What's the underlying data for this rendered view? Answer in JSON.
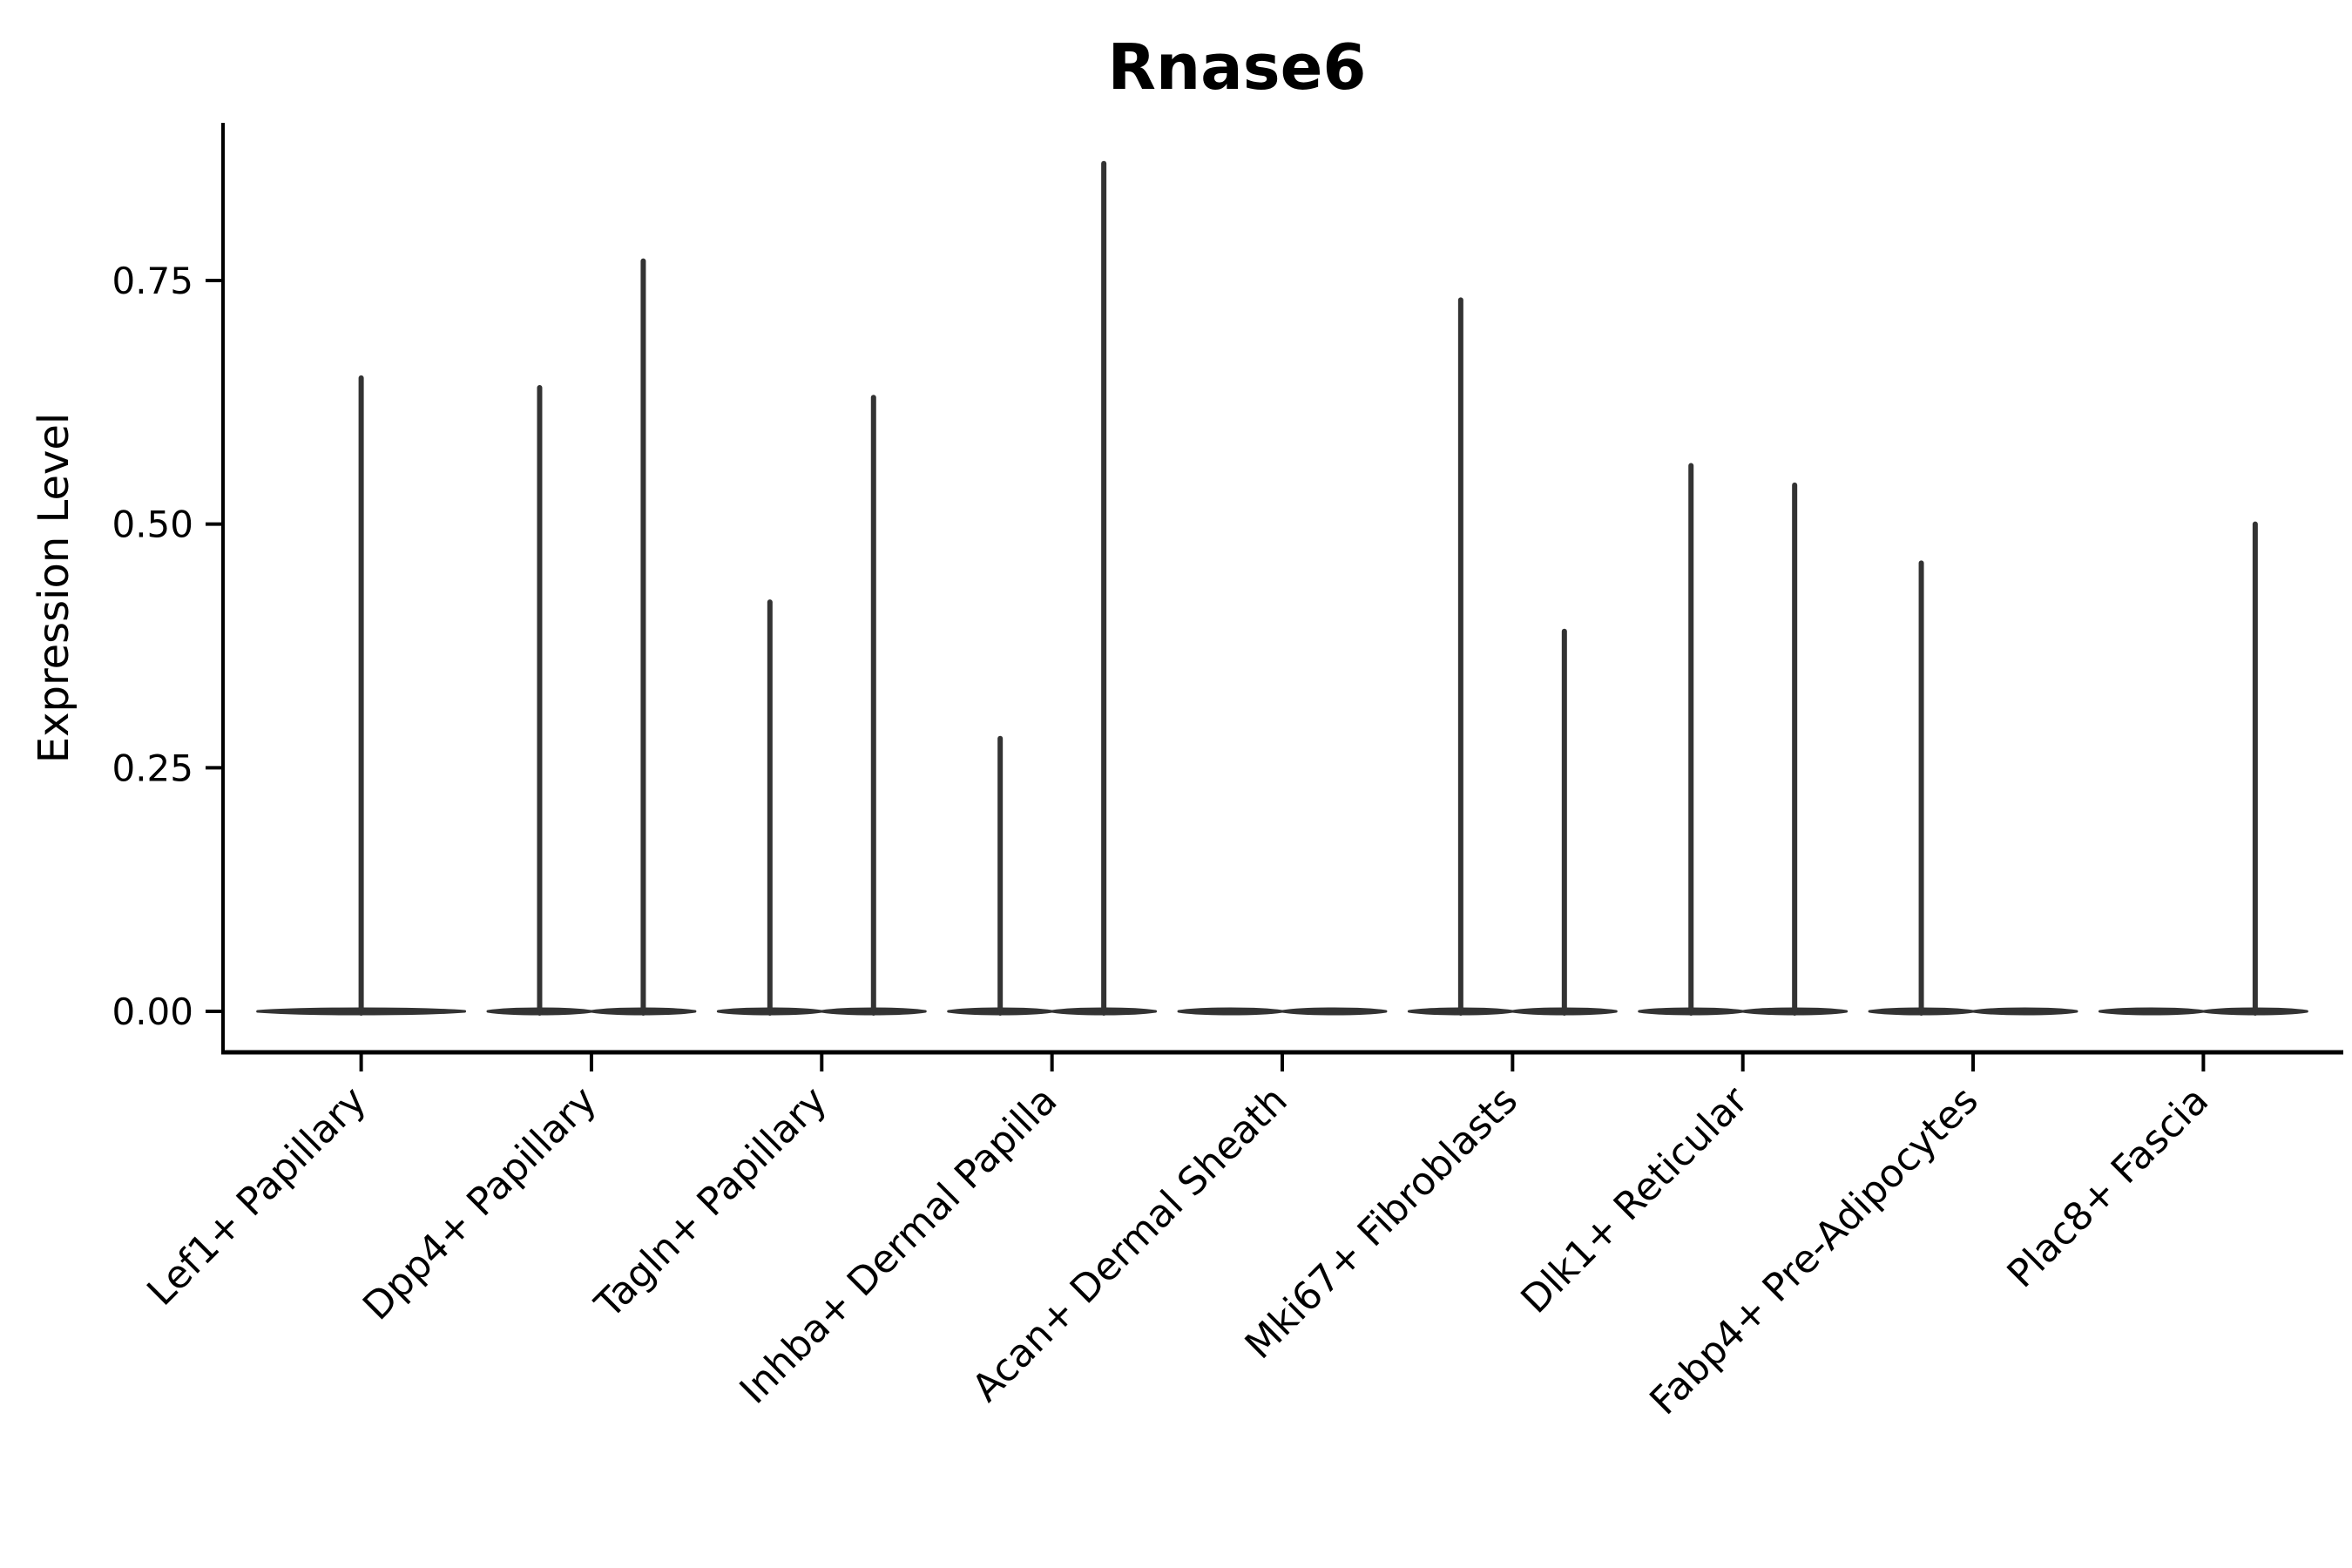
{
  "chart_data": {
    "type": "violin",
    "title": "Rnase6",
    "ylabel": "Expression Level",
    "xlabel": "",
    "ylim": [
      -0.04,
      0.91
    ],
    "grid": false,
    "legend": null,
    "yticks": [
      {
        "value": 0.0,
        "label": "0.00"
      },
      {
        "value": 0.25,
        "label": "0.25"
      },
      {
        "value": 0.5,
        "label": "0.50"
      },
      {
        "value": 0.75,
        "label": "0.75"
      }
    ],
    "categories": [
      "Lef1+ Papillary",
      "Dpp4+ Papillary",
      "Tagln+ Papillary",
      "Inhba+ Dermal Papilla",
      "Acan+ Dermal Sheath",
      "Mki67+ Fibroblasts",
      "Dlk1+ Reticular",
      "Fabp4+ Pre-Adipocytes",
      "Plac8+ Fascia"
    ],
    "violins": [
      {
        "label": "Lef1+ Papillary",
        "layout": "full",
        "baseline": 0.0,
        "spikes": [
          {
            "side": "center",
            "max": 0.65
          }
        ]
      },
      {
        "label": "Dpp4+ Papillary",
        "layout": "split",
        "baseline": 0.0,
        "spikes": [
          {
            "side": "left",
            "max": 0.64
          },
          {
            "side": "right",
            "max": 0.77
          }
        ]
      },
      {
        "label": "Tagln+ Papillary",
        "layout": "split",
        "baseline": 0.0,
        "spikes": [
          {
            "side": "left",
            "max": 0.42
          },
          {
            "side": "right",
            "max": 0.63
          }
        ]
      },
      {
        "label": "Inhba+ Dermal Papilla",
        "layout": "split",
        "baseline": 0.0,
        "spikes": [
          {
            "side": "left",
            "max": 0.28
          },
          {
            "side": "right",
            "max": 0.87
          }
        ]
      },
      {
        "label": "Acan+ Dermal Sheath",
        "layout": "split",
        "baseline": 0.0,
        "spikes": []
      },
      {
        "label": "Mki67+ Fibroblasts",
        "layout": "split",
        "baseline": 0.0,
        "spikes": [
          {
            "side": "left",
            "max": 0.73
          },
          {
            "side": "right",
            "max": 0.39
          }
        ]
      },
      {
        "label": "Dlk1+ Reticular",
        "layout": "split",
        "baseline": 0.0,
        "spikes": [
          {
            "side": "left",
            "max": 0.56
          },
          {
            "side": "right",
            "max": 0.54
          }
        ]
      },
      {
        "label": "Fabp4+ Pre-Adipocytes",
        "layout": "split",
        "baseline": 0.0,
        "spikes": [
          {
            "side": "left",
            "max": 0.46
          }
        ]
      },
      {
        "label": "Plac8+ Fascia",
        "layout": "split",
        "baseline": 0.0,
        "spikes": [
          {
            "side": "right",
            "max": 0.5
          }
        ]
      }
    ],
    "colors": {
      "ink": "#000000",
      "violin": "#333333",
      "background": "#ffffff"
    }
  }
}
